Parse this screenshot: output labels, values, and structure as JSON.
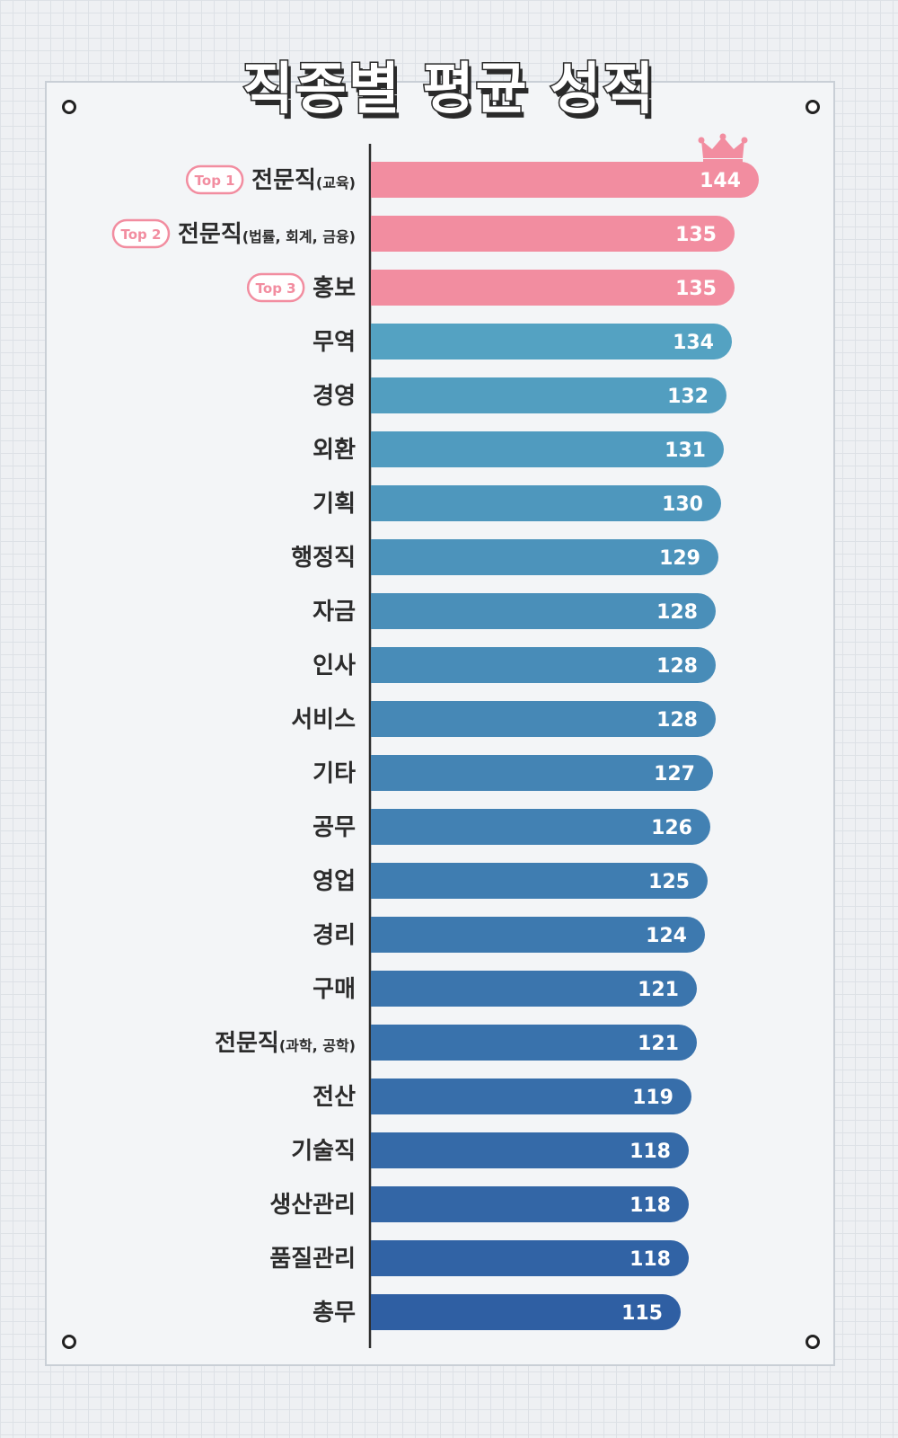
{
  "title": "직종별 평균 성적",
  "colors": {
    "top": "#f28da0",
    "bar_start": "#54a2c2",
    "bar_end": "#2f5fa3",
    "axis": "#2c2c2c",
    "label": "#2c2c2c",
    "badge": "#f28da0"
  },
  "icons": {
    "winner": "crown-icon"
  },
  "chart_data": {
    "type": "bar",
    "orientation": "horizontal",
    "title": "직종별 평균 성적",
    "categories": [
      {
        "main": "전문직",
        "sub": "(교육)",
        "badge": "Top 1"
      },
      {
        "main": "전문직",
        "sub": "(법률, 회계, 금융)",
        "badge": "Top 2"
      },
      {
        "main": "홍보",
        "sub": "",
        "badge": "Top 3"
      },
      {
        "main": "무역",
        "sub": "",
        "badge": ""
      },
      {
        "main": "경영",
        "sub": "",
        "badge": ""
      },
      {
        "main": "외환",
        "sub": "",
        "badge": ""
      },
      {
        "main": "기획",
        "sub": "",
        "badge": ""
      },
      {
        "main": "행정직",
        "sub": "",
        "badge": ""
      },
      {
        "main": "자금",
        "sub": "",
        "badge": ""
      },
      {
        "main": "인사",
        "sub": "",
        "badge": ""
      },
      {
        "main": "서비스",
        "sub": "",
        "badge": ""
      },
      {
        "main": "기타",
        "sub": "",
        "badge": ""
      },
      {
        "main": "공무",
        "sub": "",
        "badge": ""
      },
      {
        "main": "영업",
        "sub": "",
        "badge": ""
      },
      {
        "main": "경리",
        "sub": "",
        "badge": ""
      },
      {
        "main": "구매",
        "sub": "",
        "badge": ""
      },
      {
        "main": "전문직",
        "sub": "(과학, 공학)",
        "badge": ""
      },
      {
        "main": "전산",
        "sub": "",
        "badge": ""
      },
      {
        "main": "기술직",
        "sub": "",
        "badge": ""
      },
      {
        "main": "생산관리",
        "sub": "",
        "badge": ""
      },
      {
        "main": "품질관리",
        "sub": "",
        "badge": ""
      },
      {
        "main": "총무",
        "sub": "",
        "badge": ""
      }
    ],
    "values": [
      144,
      135,
      135,
      134,
      132,
      131,
      130,
      129,
      128,
      128,
      128,
      127,
      126,
      125,
      124,
      121,
      121,
      119,
      118,
      118,
      118,
      115
    ],
    "highlight_top": 3,
    "grid": false,
    "legend": "none"
  }
}
